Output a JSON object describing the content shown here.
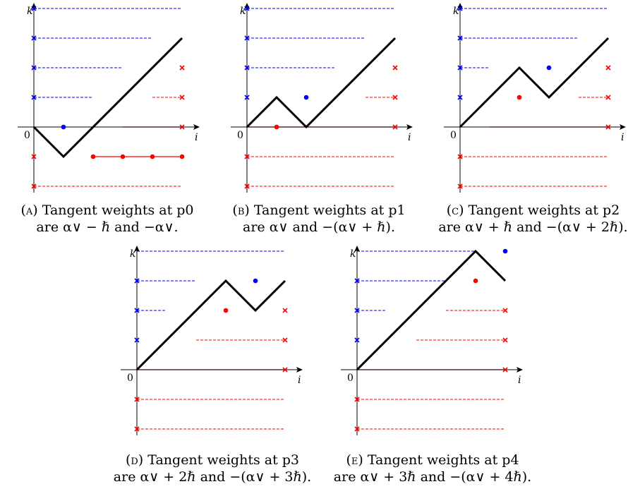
{
  "colors": {
    "blue": "#0000ff",
    "red": "#ff0000",
    "path": "#000000"
  },
  "axis_labels": {
    "x": "i",
    "y": "k",
    "origin": "0"
  },
  "panels": [
    {
      "id": "a",
      "caption": {
        "label": "(a)",
        "line1": "Tangent weights at p0",
        "line2": "are α∨ − ℏ and −α∨."
      },
      "path": [
        [
          0,
          0
        ],
        [
          1,
          -1
        ],
        [
          5,
          3
        ]
      ],
      "blue_dots": [
        [
          1,
          0
        ]
      ],
      "red_dots": [
        [
          2,
          -1
        ],
        [
          3,
          -1
        ],
        [
          4,
          -1
        ],
        [
          5,
          -1
        ]
      ],
      "red_solid": [
        [
          2,
          -1,
          5,
          -1
        ],
        [
          3,
          0,
          5,
          0
        ]
      ],
      "blue_dashed": [
        [
          0,
          4,
          5
        ],
        [
          0,
          3,
          4
        ],
        [
          0,
          2,
          3
        ],
        [
          0,
          1,
          2
        ]
      ],
      "red_dashed": [
        [
          4,
          1,
          5
        ],
        [
          0,
          -2,
          5
        ]
      ],
      "blue_marks": [
        [
          0,
          4
        ],
        [
          0,
          3
        ],
        [
          0,
          2
        ],
        [
          0,
          1
        ]
      ],
      "red_marks": [
        [
          5,
          2
        ],
        [
          5,
          1
        ],
        [
          5,
          0
        ],
        [
          0,
          -1
        ],
        [
          0,
          -2
        ]
      ]
    },
    {
      "id": "b",
      "caption": {
        "label": "(b)",
        "line1": "Tangent weights at p1",
        "line2": "are α∨ and −(α∨ + ℏ)."
      },
      "path": [
        [
          0,
          0
        ],
        [
          1,
          1
        ],
        [
          2,
          0
        ],
        [
          5,
          3
        ]
      ],
      "blue_dots": [
        [
          2,
          1
        ]
      ],
      "red_dots": [
        [
          1,
          0
        ]
      ],
      "red_solid": [
        [
          0,
          0,
          5,
          0
        ]
      ],
      "blue_dashed": [
        [
          0,
          4,
          5
        ],
        [
          0,
          3,
          4
        ],
        [
          0,
          2,
          3
        ]
      ],
      "red_dashed": [
        [
          4,
          1,
          5
        ],
        [
          0,
          -1,
          5
        ],
        [
          0,
          -2,
          5
        ]
      ],
      "blue_marks": [
        [
          0,
          4
        ],
        [
          0,
          3
        ],
        [
          0,
          2
        ],
        [
          0,
          1
        ]
      ],
      "red_marks": [
        [
          5,
          2
        ],
        [
          5,
          1
        ],
        [
          5,
          0
        ],
        [
          0,
          -1
        ],
        [
          0,
          -2
        ]
      ]
    },
    {
      "id": "c",
      "caption": {
        "label": "(c)",
        "line1": "Tangent weights at p2",
        "line2": "are α∨ + ℏ and −(α∨ + 2ℏ)."
      },
      "path": [
        [
          0,
          0
        ],
        [
          2,
          2
        ],
        [
          3,
          1
        ],
        [
          5,
          3
        ]
      ],
      "blue_dots": [
        [
          3,
          2
        ]
      ],
      "red_dots": [
        [
          2,
          1
        ]
      ],
      "red_solid": [
        [
          1,
          0,
          5,
          0
        ]
      ],
      "blue_dashed": [
        [
          0,
          4,
          5
        ],
        [
          0,
          3,
          4
        ],
        [
          0,
          2,
          1
        ]
      ],
      "red_dashed": [
        [
          4,
          1,
          5
        ],
        [
          0,
          -1,
          5
        ],
        [
          0,
          -2,
          5
        ]
      ],
      "blue_marks": [
        [
          0,
          4
        ],
        [
          0,
          3
        ],
        [
          0,
          2
        ],
        [
          0,
          1
        ]
      ],
      "red_marks": [
        [
          5,
          2
        ],
        [
          5,
          1
        ],
        [
          5,
          0
        ],
        [
          0,
          -1
        ],
        [
          0,
          -2
        ]
      ]
    },
    {
      "id": "d",
      "caption": {
        "label": "(d)",
        "line1": "Tangent weights at p3",
        "line2": "are α∨ + 2ℏ and −(α∨ + 3ℏ)."
      },
      "path": [
        [
          0,
          0
        ],
        [
          3,
          3
        ],
        [
          4,
          2
        ],
        [
          5,
          3
        ]
      ],
      "blue_dots": [
        [
          4,
          3
        ]
      ],
      "red_dots": [
        [
          3,
          2
        ]
      ],
      "red_solid": [
        [
          0,
          0,
          5,
          0
        ]
      ],
      "blue_dashed": [
        [
          0,
          4,
          5
        ],
        [
          0,
          3,
          2
        ],
        [
          0,
          2,
          1
        ]
      ],
      "red_dashed": [
        [
          2,
          1,
          5
        ],
        [
          0,
          -1,
          5
        ],
        [
          0,
          -2,
          5
        ]
      ],
      "blue_marks": [
        [
          0,
          3
        ],
        [
          0,
          2
        ],
        [
          0,
          1
        ]
      ],
      "red_marks": [
        [
          5,
          2
        ],
        [
          5,
          1
        ],
        [
          5,
          0
        ],
        [
          0,
          -1
        ],
        [
          0,
          -2
        ]
      ]
    },
    {
      "id": "e",
      "caption": {
        "label": "(e)",
        "line1": "Tangent weights at p4",
        "line2": "are α∨ + 3ℏ and −(α∨ + 4ℏ)."
      },
      "path": [
        [
          0,
          0
        ],
        [
          4,
          4
        ],
        [
          5,
          3
        ]
      ],
      "blue_dots": [
        [
          5,
          4
        ]
      ],
      "red_dots": [
        [
          4,
          3
        ]
      ],
      "red_solid": [
        [
          0,
          0,
          5,
          0
        ]
      ],
      "blue_dashed": [
        [
          0,
          4,
          4
        ],
        [
          0,
          3,
          3
        ],
        [
          0,
          2,
          1
        ]
      ],
      "red_dashed": [
        [
          3,
          2,
          5
        ],
        [
          2,
          1,
          5
        ],
        [
          0,
          -1,
          5
        ],
        [
          0,
          -2,
          5
        ]
      ],
      "blue_marks": [
        [
          0,
          3
        ],
        [
          0,
          2
        ],
        [
          0,
          1
        ]
      ],
      "red_marks": [
        [
          5,
          2
        ],
        [
          5,
          1
        ],
        [
          5,
          0
        ],
        [
          0,
          -1
        ],
        [
          0,
          -2
        ]
      ]
    }
  ]
}
